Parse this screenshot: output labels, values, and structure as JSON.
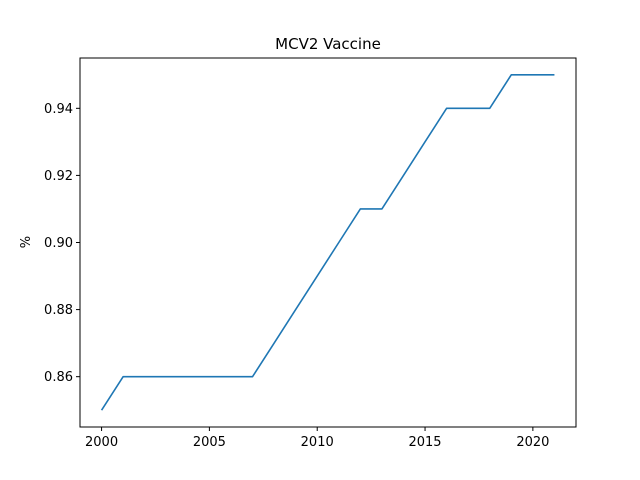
{
  "chart_data": {
    "type": "line",
    "title": "MCV2 Vaccine",
    "xlabel": "",
    "ylabel": "%",
    "xlim": [
      1999,
      2022
    ],
    "ylim": [
      0.845,
      0.955
    ],
    "xticks": [
      2000,
      2005,
      2010,
      2015,
      2020
    ],
    "yticks": [
      0.86,
      0.88,
      0.9,
      0.92,
      0.94
    ],
    "ytick_labels": [
      "0.86",
      "0.88",
      "0.90",
      "0.92",
      "0.94"
    ],
    "xtick_labels": [
      "2000",
      "2005",
      "2010",
      "2015",
      "2020"
    ],
    "grid": false,
    "series": [
      {
        "color": "#1f77b4",
        "x": [
          2000,
          2001,
          2002,
          2003,
          2004,
          2005,
          2006,
          2007,
          2008,
          2009,
          2010,
          2011,
          2012,
          2013,
          2014,
          2015,
          2016,
          2017,
          2018,
          2019,
          2020,
          2021
        ],
        "y": [
          0.85,
          0.86,
          0.86,
          0.86,
          0.86,
          0.86,
          0.86,
          0.86,
          0.87,
          0.88,
          0.89,
          0.9,
          0.91,
          0.91,
          0.92,
          0.93,
          0.94,
          0.94,
          0.94,
          0.95,
          0.95,
          0.95
        ]
      }
    ]
  }
}
